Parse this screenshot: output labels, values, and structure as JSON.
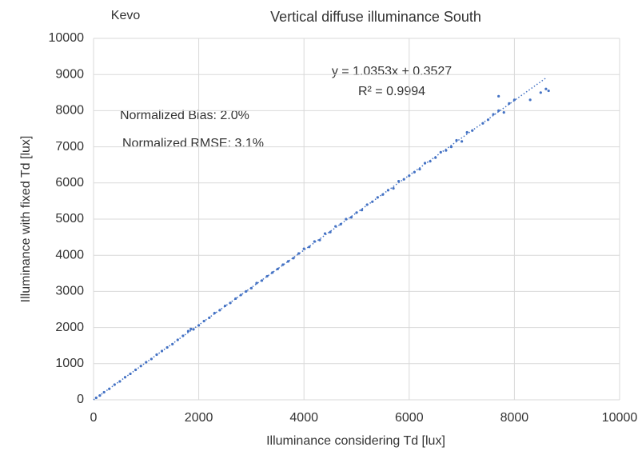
{
  "chart_data": {
    "type": "scatter",
    "title": "Vertical diffuse illuminance South",
    "site": "Kevo",
    "xlabel": "Illuminance  considering Td [lux]",
    "ylabel": "Illuminance  with fixed Td [lux]",
    "annotations": [
      "Normalized Bias: 2.0%",
      "Normalized RMSE: 3.1%"
    ],
    "trendline": {
      "label": "y = 1.0353x + 0.3527",
      "slope": 1.0353,
      "intercept": 0.3527,
      "r2_label": "R² = 0.9994",
      "r2": 0.9994,
      "x_range": [
        0,
        8600
      ]
    },
    "color": "#4472c4",
    "grid": true,
    "xlim": [
      0,
      10000
    ],
    "xticks": [
      0,
      2000,
      4000,
      6000,
      8000,
      10000
    ],
    "ylim": [
      0,
      10000
    ],
    "yticks": [
      0,
      1000,
      2000,
      3000,
      4000,
      5000,
      6000,
      7000,
      8000,
      9000,
      10000
    ],
    "x": [
      50,
      120,
      200,
      300,
      400,
      500,
      600,
      700,
      800,
      900,
      1000,
      1100,
      1200,
      1300,
      1400,
      1500,
      1600,
      1700,
      1800,
      1850,
      1900,
      2000,
      2100,
      2200,
      2300,
      2400,
      2500,
      2600,
      2700,
      2800,
      2900,
      3000,
      3100,
      3200,
      3300,
      3400,
      3500,
      3600,
      3700,
      3800,
      3900,
      4000,
      4100,
      4200,
      4300,
      4400,
      4500,
      4600,
      4700,
      4800,
      4900,
      5000,
      5100,
      5200,
      5300,
      5400,
      5500,
      5600,
      5700,
      5800,
      5900,
      6000,
      6100,
      6200,
      6300,
      6400,
      6500,
      6600,
      6700,
      6800,
      6900,
      7000,
      7100,
      7200,
      7400,
      7500,
      7600,
      7700,
      7700,
      7800,
      7900,
      8000,
      8300,
      8500,
      8600,
      8650
    ],
    "y": [
      55,
      120,
      210,
      305,
      420,
      510,
      625,
      720,
      830,
      935,
      1040,
      1130,
      1250,
      1350,
      1450,
      1540,
      1660,
      1770,
      1900,
      1960,
      1950,
      2060,
      2180,
      2270,
      2400,
      2480,
      2600,
      2680,
      2800,
      2900,
      3000,
      3090,
      3230,
      3300,
      3420,
      3520,
      3620,
      3740,
      3830,
      3920,
      4050,
      4180,
      4230,
      4380,
      4420,
      4600,
      4640,
      4800,
      4860,
      5000,
      5050,
      5180,
      5250,
      5400,
      5480,
      5600,
      5680,
      5800,
      5850,
      6050,
      6100,
      6200,
      6300,
      6380,
      6550,
      6600,
      6700,
      6850,
      6900,
      7000,
      7180,
      7150,
      7400,
      7450,
      7650,
      7750,
      7900,
      8000,
      8400,
      7950,
      8200,
      8300,
      8300,
      8500,
      8600,
      8550
    ]
  }
}
